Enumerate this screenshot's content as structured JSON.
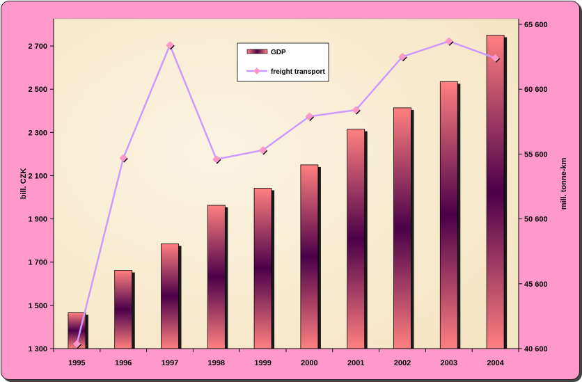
{
  "chart_data": {
    "type": "bar",
    "categories": [
      "1995",
      "1996",
      "1997",
      "1998",
      "1999",
      "2000",
      "2001",
      "2002",
      "2003",
      "2004"
    ],
    "series": [
      {
        "name": "GDP",
        "type": "bar",
        "axis": "left",
        "values": [
          1466,
          1662,
          1785,
          1963,
          2042,
          2150,
          2315,
          2414,
          2535,
          2750
        ]
      },
      {
        "name": "freight transport",
        "type": "line",
        "axis": "right",
        "values": [
          40950,
          55300,
          64000,
          55200,
          55900,
          58500,
          59000,
          63100,
          64300,
          63000
        ]
      }
    ],
    "ylabel": "bill. CZK",
    "ylabel_right": "mill. tonne-km",
    "ylim": [
      1300,
      2800
    ],
    "ylim_right": [
      40600,
      65600
    ],
    "yticks": [
      1300,
      1500,
      1700,
      1900,
      2100,
      2300,
      2500,
      2700
    ],
    "yticks_right": [
      40600,
      45600,
      50600,
      55600,
      60600,
      65600
    ],
    "ytick_labels": [
      "1 300",
      "1 500",
      "1 700",
      "1 900",
      "2 100",
      "2 300",
      "2 500",
      "2 700"
    ],
    "ytick_labels_right": [
      "40 600",
      "45 600",
      "50 600",
      "55 600",
      "60 600",
      "65 600"
    ],
    "legend_position": "top-center",
    "grid": false,
    "colors": {
      "background": "#ff99cc",
      "plot_area": "#f8ecd0",
      "bar_light": "#ff8080",
      "bar_dark": "#4b0049",
      "line": "#cc99ff",
      "marker": "#ff99cc"
    }
  }
}
